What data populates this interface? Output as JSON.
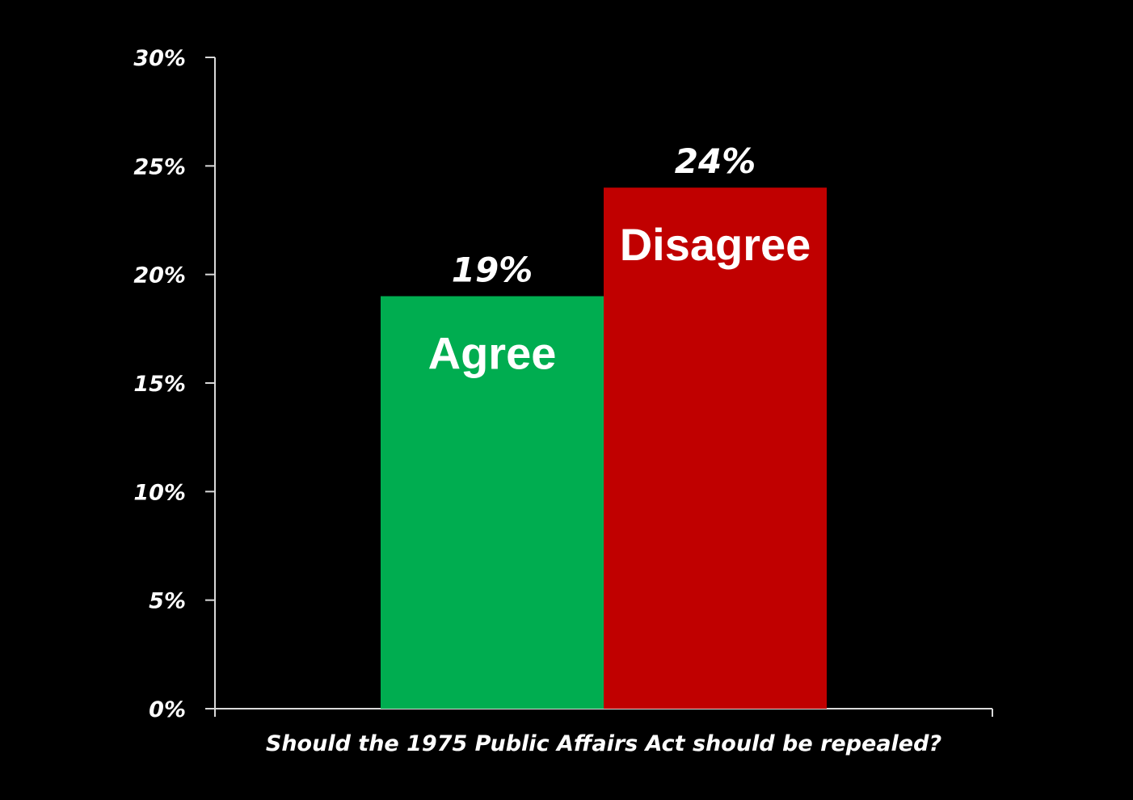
{
  "chart_data": {
    "type": "bar",
    "categories": [
      "Agree",
      "Disagree"
    ],
    "values": [
      19,
      24
    ],
    "value_labels": [
      "19%",
      "24%"
    ],
    "colors": [
      "#00AD50",
      "#C00000"
    ],
    "title": "",
    "xlabel": "Should the 1975 Public Affairs Act should be repealed?",
    "ylabel": "",
    "ylim": [
      0,
      30
    ],
    "yticks": [
      0,
      5,
      10,
      15,
      20,
      25,
      30
    ],
    "ytick_labels": [
      "0%",
      "5%",
      "10%",
      "15%",
      "20%",
      "25%",
      "30%"
    ],
    "grid": false,
    "legend": "none",
    "axis_color": "#D9D9D9",
    "background": "#000000"
  }
}
